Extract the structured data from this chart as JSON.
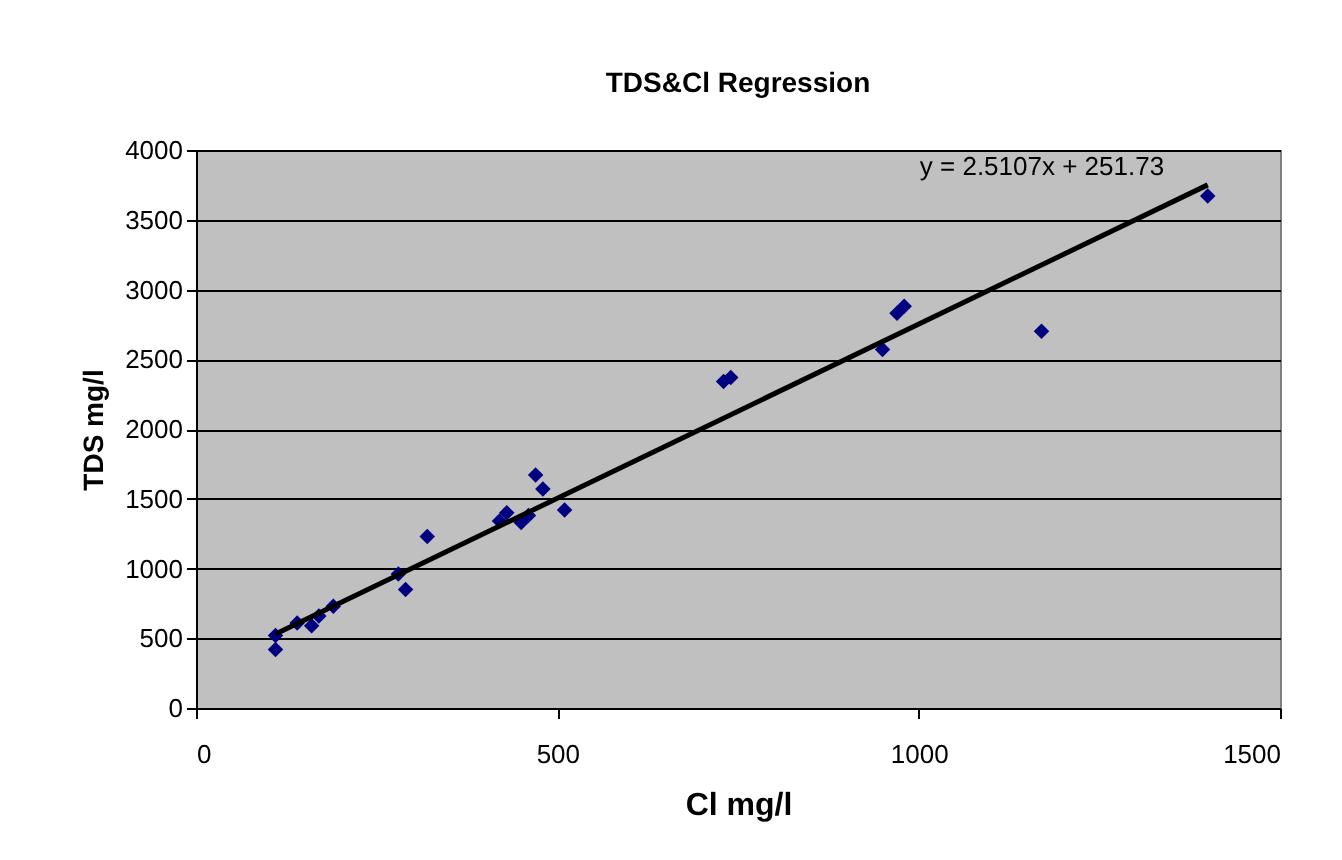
{
  "chart_data": {
    "type": "scatter",
    "title": "TDS&Cl Regression",
    "xlabel": "Cl mg/l",
    "ylabel": "TDS mg/l",
    "xlim": [
      0,
      1500
    ],
    "xticks": [
      0,
      500,
      1000,
      1500
    ],
    "ylim": [
      0,
      4000
    ],
    "yticks": [
      0,
      500,
      1000,
      1500,
      2000,
      2500,
      3000,
      3500,
      4000
    ],
    "grid": "y",
    "annotations": [
      {
        "text": "y = 2.5107x + 251.73",
        "x": 1395,
        "y": 3750
      }
    ],
    "series": [
      {
        "color": "#000080",
        "marker": "diamond",
        "x": [
          110,
          110,
          140,
          160,
          170,
          190,
          280,
          290,
          320,
          420,
          430,
          450,
          460,
          470,
          480,
          510,
          730,
          740,
          950,
          970,
          980,
          1170,
          1400
        ],
        "values": [
          420,
          520,
          610,
          590,
          660,
          730,
          960,
          850,
          1230,
          1340,
          1400,
          1330,
          1380,
          1670,
          1570,
          1420,
          2340,
          2370,
          2570,
          2830,
          2880,
          2700,
          3670
        ]
      },
      {
        "type": "line",
        "color": "#000000",
        "line_style": "solid",
        "x": [
          110,
          1400
        ],
        "values": [
          530,
          3750
        ]
      }
    ]
  }
}
